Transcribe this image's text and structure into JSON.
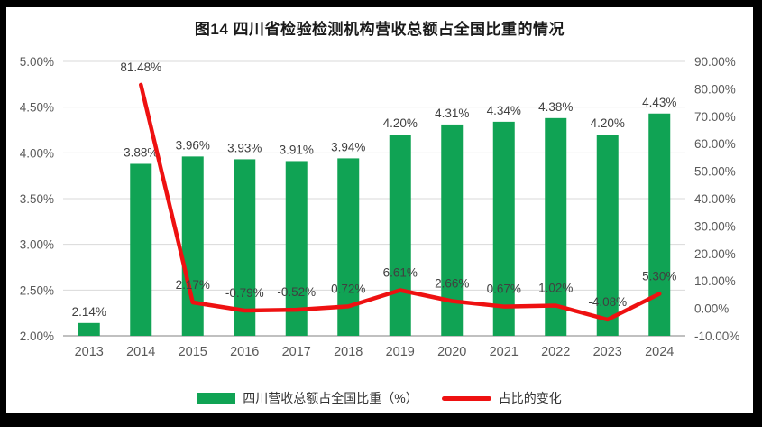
{
  "title": "图14  四川省检验检测机构营收总额占全国比重的情况",
  "colors": {
    "bar": "#10A354",
    "line": "#EE1111",
    "gridline": "#D9D9D9",
    "axis_line": "#C0C0C0",
    "tick_label": "#595959",
    "data_label": "#404040",
    "background": "#FFFFFF",
    "frame": "#000000"
  },
  "chart_data": {
    "type": "bar",
    "subtype": "combo-bar-line-dual-axis",
    "title": "图14  四川省检验检测机构营收总额占全国比重的情况",
    "categories": [
      "2013",
      "2014",
      "2015",
      "2016",
      "2017",
      "2018",
      "2019",
      "2020",
      "2021",
      "2022",
      "2023",
      "2024"
    ],
    "series": [
      {
        "name": "四川营收总额占全国比重（%）",
        "type": "bar",
        "axis": "left",
        "values": [
          2.14,
          3.88,
          3.96,
          3.93,
          3.91,
          3.94,
          4.2,
          4.31,
          4.34,
          4.38,
          4.2,
          4.43
        ]
      },
      {
        "name": "占比的变化",
        "type": "line",
        "axis": "right",
        "values": [
          null,
          81.48,
          2.17,
          -0.79,
          -0.52,
          0.72,
          6.61,
          2.66,
          0.67,
          1.02,
          -4.08,
          5.3
        ]
      }
    ],
    "left_axis": {
      "min": 2.0,
      "max": 5.0,
      "step": 0.5,
      "format": "percent2"
    },
    "right_axis": {
      "min": -10.0,
      "max": 90.0,
      "step": 10.0,
      "format": "percent2"
    },
    "grid": true,
    "legend_position": "bottom",
    "xlabel": "",
    "ylabel": ""
  }
}
